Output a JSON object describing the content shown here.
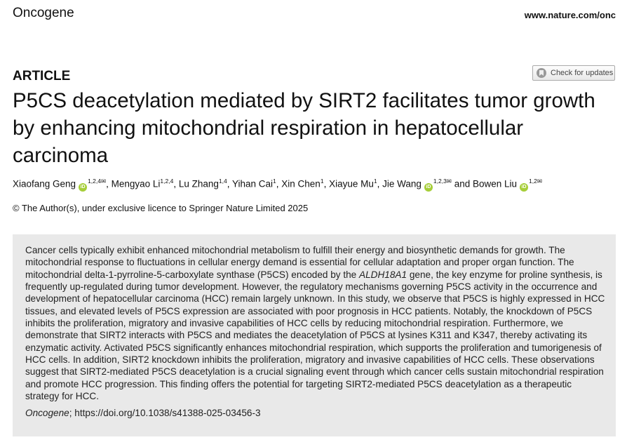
{
  "header": {
    "journal": "Oncogene",
    "url": "www.nature.com/onc",
    "check_updates": "Check for updates"
  },
  "article_type": "ARTICLE",
  "title": "P5CS deacetylation mediated by SIRT2 facilitates tumor growth by enhancing mitochondrial respiration in hepatocellular carcinoma",
  "authors": [
    {
      "name": "Xiaofang Geng",
      "orcid": true,
      "aff": "1,2,4",
      "corresponding": true
    },
    {
      "name": "Mengyao Li",
      "orcid": false,
      "aff": "1,2,4",
      "corresponding": false
    },
    {
      "name": "Lu Zhang",
      "orcid": false,
      "aff": "1,4",
      "corresponding": false
    },
    {
      "name": "Yihan Cai",
      "orcid": false,
      "aff": "1",
      "corresponding": false
    },
    {
      "name": "Xin Chen",
      "orcid": false,
      "aff": "1",
      "corresponding": false
    },
    {
      "name": "Xiayue Mu",
      "orcid": false,
      "aff": "1",
      "corresponding": false
    },
    {
      "name": "Jie Wang",
      "orcid": true,
      "aff": "1,2,3",
      "corresponding": true
    },
    {
      "name": "Bowen Liu",
      "orcid": true,
      "aff": "1,2",
      "corresponding": true
    }
  ],
  "authors_and": "and",
  "orcid_label": "iD",
  "mail_icon": "✉",
  "copyright": "© The Author(s), under exclusive licence to Springer Nature Limited 2025",
  "abstract": {
    "part1": "Cancer cells typically exhibit enhanced mitochondrial metabolism to fulfill their energy and biosynthetic demands for growth. The mitochondrial response to fluctuations in cellular energy demand is essential for cellular adaptation and proper organ function. The mitochondrial delta-1-pyrroline-5-carboxylate synthase (P5CS) encoded by the ",
    "italic": "ALDH18A1",
    "part2": " gene, the key enzyme for proline synthesis, is frequently up-regulated during tumor development. However, the regulatory mechanisms governing P5CS activity in the occurrence and development of hepatocellular carcinoma (HCC) remain largely unknown. In this study, we observe that P5CS is highly expressed in HCC tissues, and elevated levels of P5CS expression are associated with poor prognosis in HCC patients. Notably, the knockdown of P5CS inhibits the proliferation, migratory and invasive capabilities of HCC cells by reducing mitochondrial respiration. Furthermore, we demonstrate that SIRT2 interacts with P5CS and mediates the deacetylation of P5CS at lysines K311 and K347, thereby activating its enzymatic activity. Activated P5CS significantly enhances mitochondrial respiration, which supports the proliferation and tumorigenesis of HCC cells. In addition, SIRT2 knockdown inhibits the proliferation, migratory and invasive capabilities of HCC cells. These observations suggest that SIRT2-mediated P5CS deacetylation is a crucial signaling event through which cancer cells sustain mitochondrial respiration and promote HCC progression. This finding offers the potential for targeting SIRT2-mediated P5CS deacetylation as a therapeutic strategy for HCC."
  },
  "citation": {
    "journal": "Oncogene",
    "doi": "; https://doi.org/10.1038/s41388-025-03456-3"
  }
}
